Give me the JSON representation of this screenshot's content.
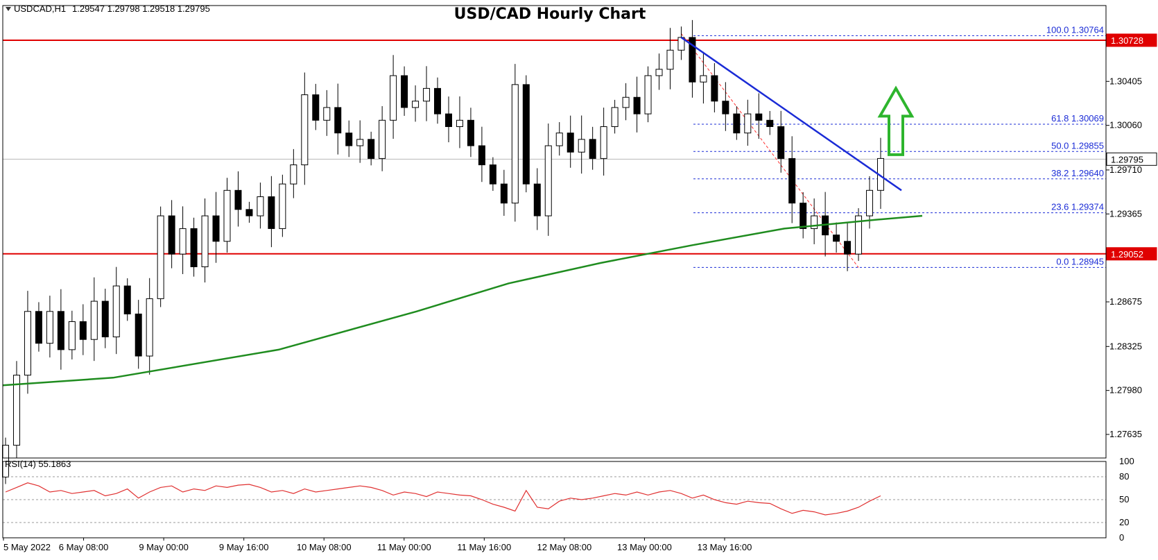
{
  "header": {
    "symbol_label": "USDCAD,H1",
    "ohlc": "1.29547 1.29798 1.29518 1.29795",
    "title": "USD/CAD Hourly Chart"
  },
  "rsi_label": "RSI(14) 55.1863",
  "colors": {
    "bull": "#ffffff",
    "bear": "#000000",
    "ma": "#1f8c1f",
    "trendline": "#1a2bd6",
    "horizontal": "#e00000",
    "fib": "#1a2bd6",
    "rsi": "#e03030",
    "arrow": "#2db52d"
  },
  "chart_data": {
    "type": "candlestick",
    "title": "USD/CAD Hourly Chart",
    "price_axis": {
      "min": 1.2745,
      "max": 1.31,
      "ticks": [
        "1.30405",
        "1.30060",
        "1.29710",
        "1.29365",
        "1.28675",
        "1.28325",
        "1.27980",
        "1.27635"
      ]
    },
    "current_price": "1.29795",
    "horizontal_levels": [
      {
        "value": 1.30728,
        "label": "1.30728"
      },
      {
        "value": 1.29052,
        "label": "1.29052"
      }
    ],
    "fib_levels": [
      {
        "value": 1.30764,
        "label": "100.0  1.30764"
      },
      {
        "value": 1.30069,
        "label": "61.8  1.30069"
      },
      {
        "value": 1.29855,
        "label": "50.0  1.29855"
      },
      {
        "value": 1.2964,
        "label": "38.2  1.29640"
      },
      {
        "value": 1.29374,
        "label": "23.6  1.29374"
      },
      {
        "value": 1.28945,
        "label": "0.0  1.28945"
      }
    ],
    "time_labels": [
      "5 May 2022",
      "6 May 08:00",
      "9 May 00:00",
      "9 May 16:00",
      "10 May 08:00",
      "11 May 00:00",
      "11 May 16:00",
      "12 May 08:00",
      "13 May 00:00",
      "13 May 16:00"
    ],
    "close_path": [
      1.2755,
      1.281,
      1.286,
      1.2835,
      1.286,
      1.283,
      1.2852,
      1.2838,
      1.2868,
      1.284,
      1.288,
      1.2858,
      1.2825,
      1.287,
      1.2935,
      1.2905,
      1.2925,
      1.2895,
      1.2935,
      1.2915,
      1.2955,
      1.294,
      1.2935,
      1.295,
      1.2925,
      1.296,
      1.2975,
      1.303,
      1.301,
      1.302,
      1.3,
      1.299,
      1.2995,
      1.298,
      1.301,
      1.3045,
      1.302,
      1.3025,
      1.3035,
      1.3015,
      1.3005,
      1.301,
      1.299,
      1.2975,
      1.296,
      1.2945,
      1.3038,
      1.296,
      1.2935,
      1.299,
      1.3,
      1.2985,
      1.2995,
      1.298,
      1.3005,
      1.302,
      1.3028,
      1.3015,
      1.3045,
      1.305,
      1.3065,
      1.3075,
      1.304,
      1.3045,
      1.3025,
      1.3015,
      1.3,
      1.3015,
      1.301,
      1.3005,
      1.298,
      1.2945,
      1.2925,
      1.2935,
      1.292,
      1.2915,
      1.2905,
      1.2935,
      1.2955,
      1.298
    ],
    "ma_points": [
      [
        1.2802,
        0.0
      ],
      [
        1.2808,
        0.12
      ],
      [
        1.283,
        0.3
      ],
      [
        1.286,
        0.45
      ],
      [
        1.2882,
        0.55
      ],
      [
        1.2898,
        0.65
      ],
      [
        1.2912,
        0.75
      ],
      [
        1.2925,
        0.85
      ],
      [
        1.2932,
        0.95
      ],
      [
        1.2935,
        1.0
      ]
    ],
    "trendline": {
      "from": 1.3075,
      "to": 1.2955
    },
    "rsi": {
      "label": "RSI(14) 55.1863",
      "ticks": [
        "100",
        "80",
        "50",
        "20",
        "0"
      ],
      "levels": [
        80,
        50,
        20
      ],
      "values": [
        60,
        66,
        72,
        68,
        60,
        62,
        58,
        60,
        62,
        55,
        58,
        64,
        52,
        60,
        66,
        68,
        60,
        64,
        62,
        68,
        66,
        69,
        70,
        66,
        60,
        62,
        58,
        64,
        60,
        62,
        64,
        66,
        68,
        66,
        62,
        56,
        60,
        58,
        54,
        60,
        58,
        56,
        55,
        50,
        44,
        40,
        35,
        62,
        40,
        38,
        48,
        52,
        50,
        52,
        55,
        58,
        56,
        60,
        56,
        60,
        62,
        58,
        52,
        56,
        50,
        46,
        44,
        48,
        46,
        45,
        38,
        32,
        36,
        34,
        30,
        32,
        35,
        40,
        48,
        55
      ]
    }
  }
}
